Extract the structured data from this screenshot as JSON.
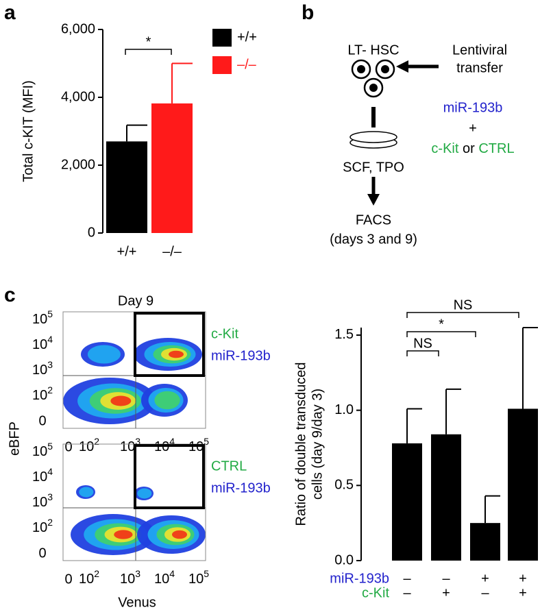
{
  "panel_labels": [
    "a",
    "b",
    "c"
  ],
  "chart_data": [
    {
      "type": "bar",
      "ylabel": "Total c-KIT (MFI)",
      "categories": [
        "+/+",
        "–/–"
      ],
      "values": [
        2700,
        3820
      ],
      "errors": [
        480,
        1180
      ],
      "colors": [
        "#000000",
        "#ff1a1a"
      ],
      "legend": [
        {
          "name": "+/+",
          "color": "#000000"
        },
        {
          "name": "–/–",
          "color": "#ff1a1a"
        }
      ],
      "ylim": [
        0,
        6000
      ],
      "yticks": [
        0,
        {
          "value": 2000,
          "label": "2,000"
        },
        {
          "value": 4000,
          "label": "4,000"
        },
        {
          "value": 6000,
          "label": "6,000"
        }
      ],
      "significance": [
        "*"
      ]
    },
    {
      "type": "bar",
      "ylabel": [
        "Ratio of double transduced",
        "cells (day 9/day 3)"
      ],
      "values": [
        0.78,
        0.84,
        0.25,
        1.01
      ],
      "errors": [
        0.23,
        0.3,
        0.18,
        0.54
      ],
      "color": "#000000",
      "ylim": [
        0,
        1.55
      ],
      "yticks": [
        {
          "value": 0,
          "label": "0.0"
        },
        0.5,
        {
          "value": 1,
          "label": "1.0"
        },
        1.5
      ],
      "row_labels": [
        {
          "name": "miR-193b",
          "color": "#2222cc",
          "signs": [
            "–",
            "–",
            "+",
            "+"
          ]
        },
        {
          "name": "c-Kit",
          "color": "#22aa44",
          "signs": [
            "–",
            "+",
            "–",
            "+"
          ]
        }
      ],
      "significance": [
        "NS",
        "*",
        "NS"
      ]
    }
  ],
  "diagram": {
    "cells": "LT- HSC",
    "transfer": [
      "Lentiviral",
      "transfer"
    ],
    "construct": "miR-193b",
    "plus": "+",
    "options": [
      "c-Kit",
      "or",
      "CTRL"
    ],
    "culture": "SCF, TPO",
    "readout": [
      "FACS",
      "(days 3 and 9)"
    ]
  },
  "flow": {
    "title": "Day 9",
    "x_label": "Venus",
    "y_label": "eBFP",
    "xticks": [
      "0",
      {
        "base": "10",
        "exp": "2"
      },
      {
        "base": "10",
        "exp": "3"
      },
      {
        "base": "10",
        "exp": "4"
      },
      {
        "base": "10",
        "exp": "5"
      }
    ],
    "yticks": [
      {
        "base": "10",
        "exp": "5"
      },
      {
        "base": "10",
        "exp": "4"
      },
      {
        "base": "10",
        "exp": "3"
      },
      {
        "base": "10",
        "exp": "2"
      },
      "0"
    ],
    "plots": [
      {
        "annotations": [
          {
            "text": "c-Kit",
            "color": "#22aa44"
          },
          {
            "text": "miR-193b",
            "color": "#2222cc"
          }
        ]
      },
      {
        "annotations": [
          {
            "text": "CTRL",
            "color": "#22aa44"
          },
          {
            "text": "miR-193b",
            "color": "#2222cc"
          }
        ]
      }
    ]
  }
}
